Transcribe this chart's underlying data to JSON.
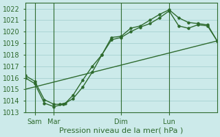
{
  "xlabel": "Pression niveau de la mer( hPa )",
  "bg_color": "#cceaea",
  "grid_color": "#aad4d4",
  "line_color": "#2d6a2d",
  "ylim": [
    1013,
    1022.5
  ],
  "xlim": [
    0,
    100
  ],
  "xtick_positions": [
    5,
    15,
    50,
    75
  ],
  "xtick_labels": [
    "Sam",
    "Mar",
    "Dim",
    "Lun"
  ],
  "vline_positions": [
    5,
    15,
    50,
    75
  ],
  "ytick_positions": [
    1013,
    1014,
    1015,
    1016,
    1017,
    1018,
    1019,
    1020,
    1021,
    1022
  ],
  "line1_x": [
    0,
    5,
    10,
    15,
    18,
    21,
    25,
    30,
    35,
    40,
    45,
    50,
    55,
    60,
    65,
    70,
    75,
    80,
    85,
    90,
    95,
    100
  ],
  "line1_y": [
    1016.2,
    1015.7,
    1014.1,
    1013.7,
    1013.7,
    1013.8,
    1014.5,
    1015.8,
    1017.0,
    1018.0,
    1019.5,
    1019.6,
    1020.3,
    1020.5,
    1021.0,
    1021.5,
    1021.9,
    1021.2,
    1020.8,
    1020.7,
    1020.6,
    1019.2
  ],
  "line2_x": [
    0,
    5,
    10,
    15,
    20,
    25,
    30,
    35,
    40,
    45,
    50,
    55,
    60,
    65,
    70,
    75,
    80,
    85,
    90,
    95,
    100
  ],
  "line2_y": [
    1016.0,
    1015.5,
    1013.8,
    1013.5,
    1013.7,
    1014.2,
    1015.2,
    1016.5,
    1018.0,
    1019.3,
    1019.5,
    1020.0,
    1020.4,
    1020.7,
    1021.2,
    1021.8,
    1020.5,
    1020.3,
    1020.6,
    1020.5,
    1019.2
  ],
  "line3_x": [
    0,
    100
  ],
  "line3_y": [
    1015.0,
    1019.2
  ]
}
